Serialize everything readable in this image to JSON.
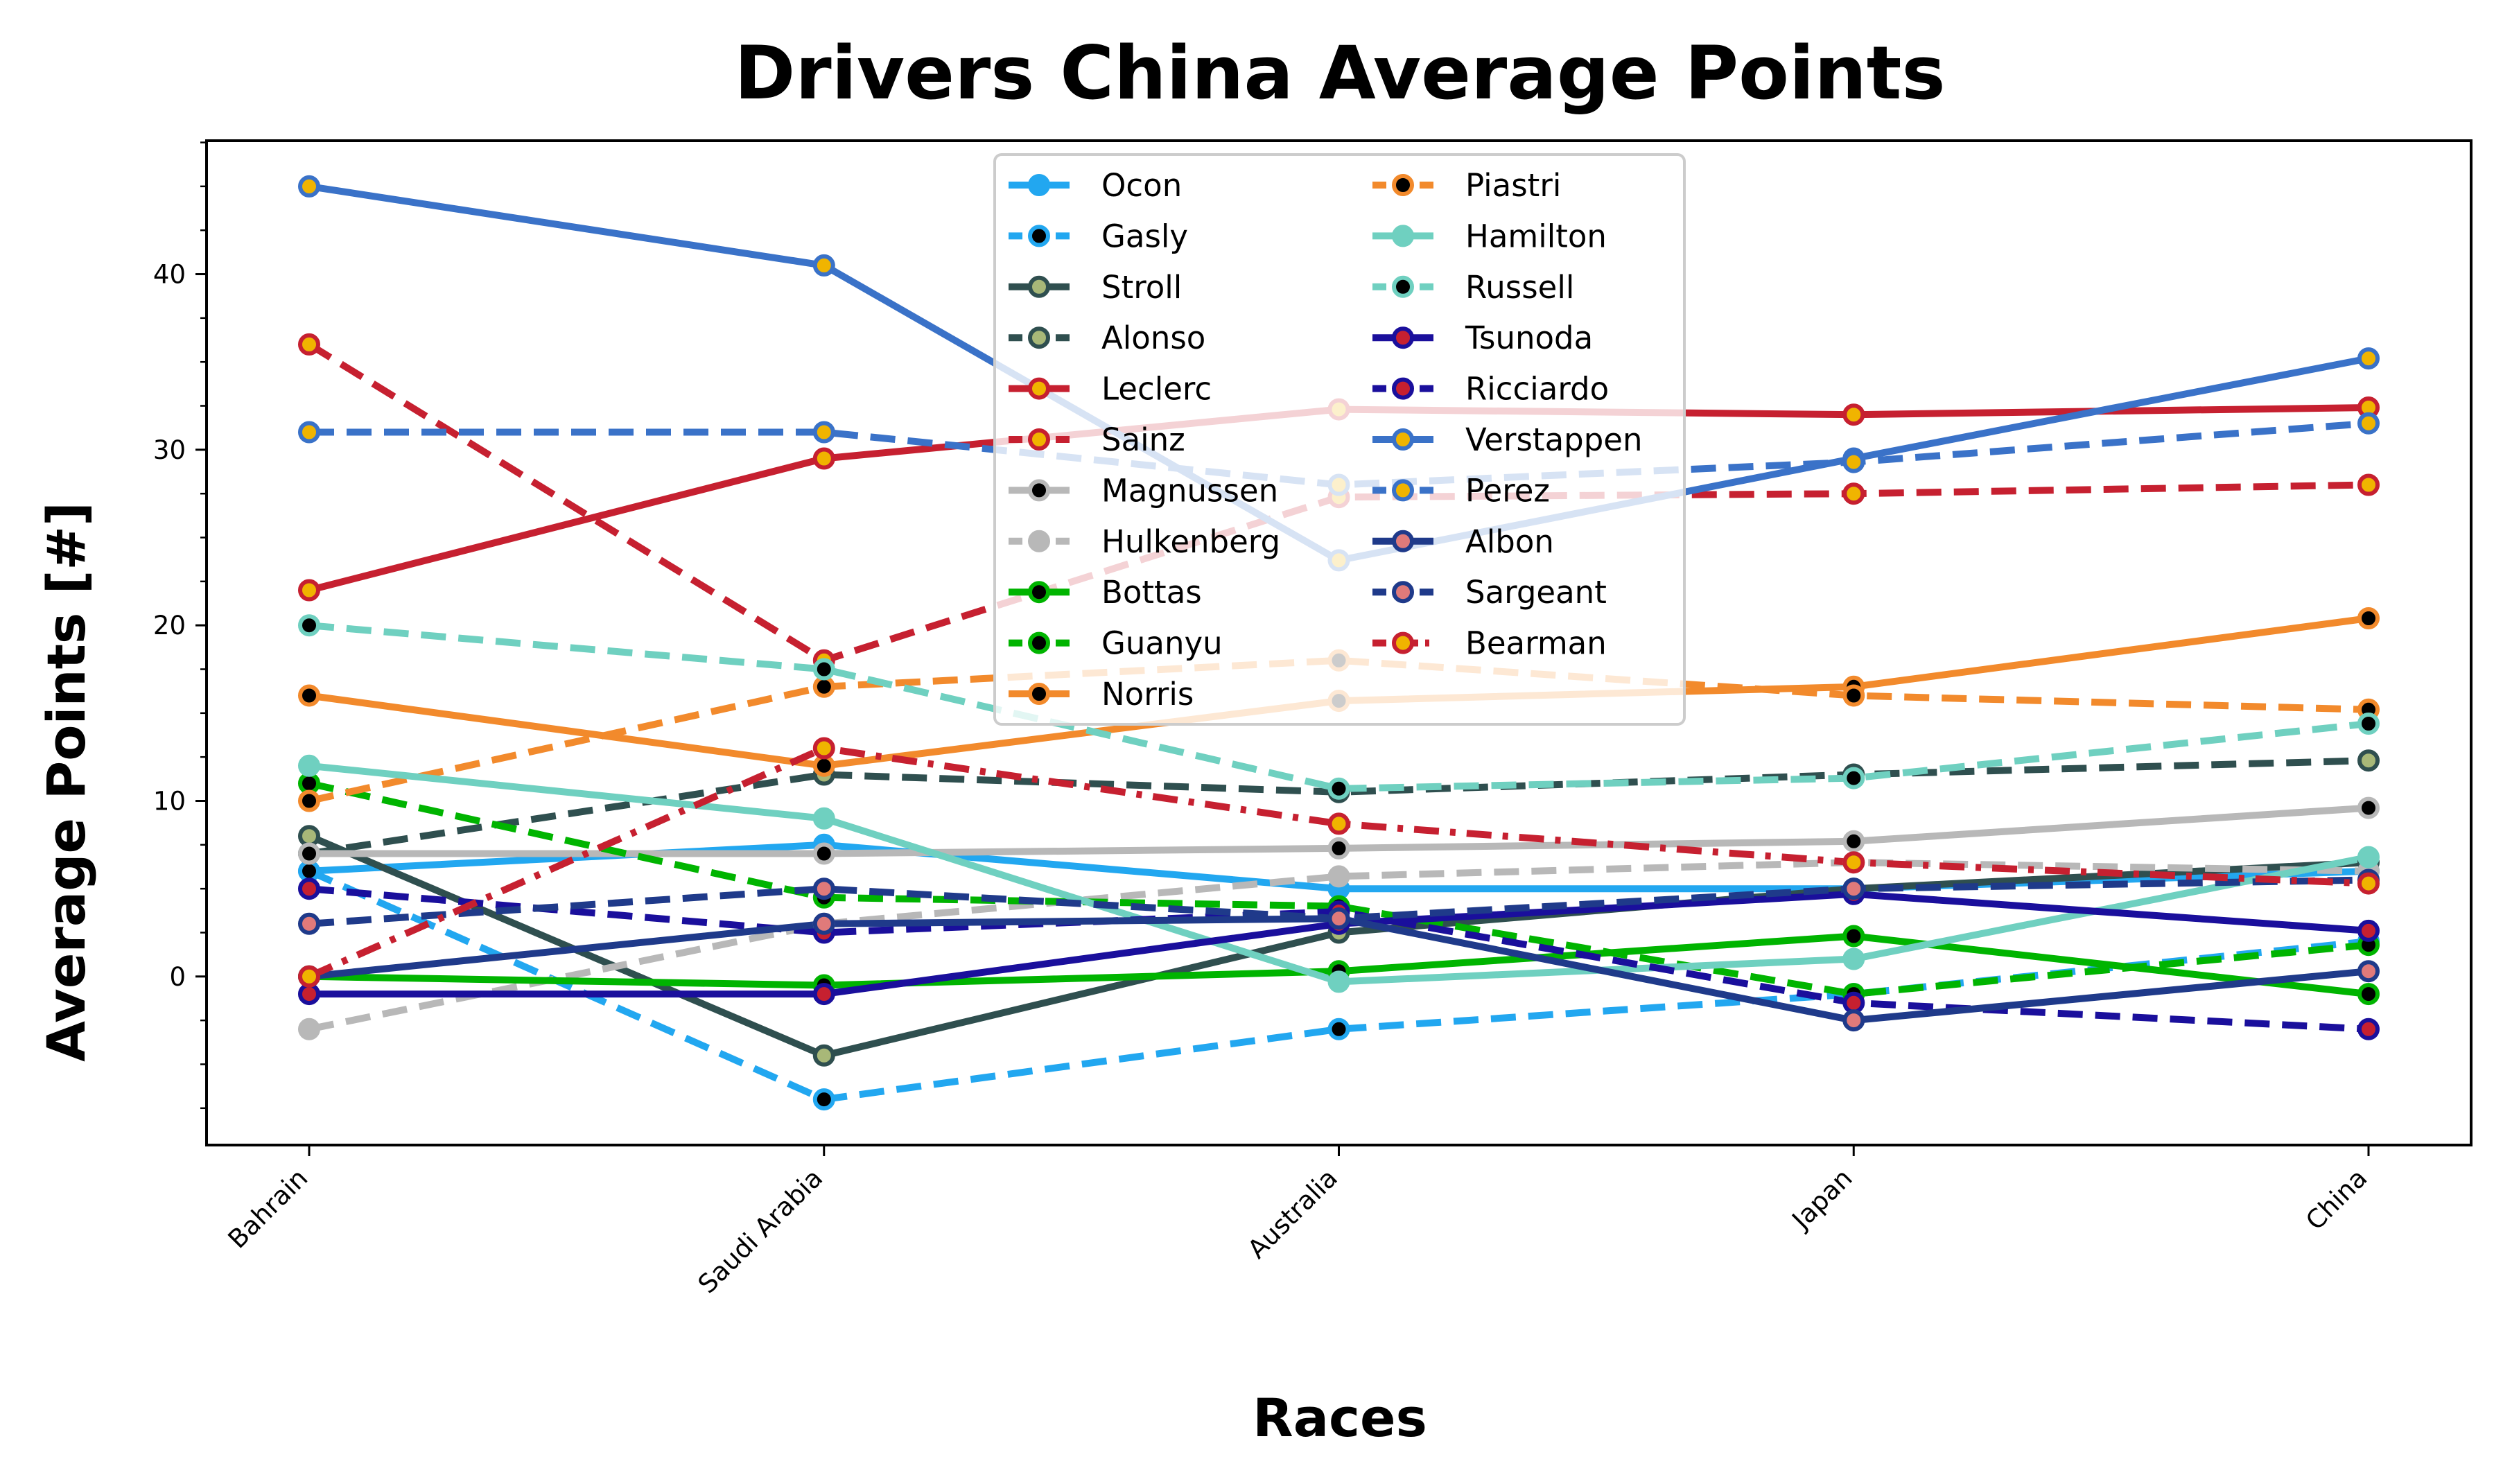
{
  "chart_data": {
    "type": "line",
    "title": "Drivers China Average Points",
    "xlabel": "Races",
    "ylabel": "Average Points [#]",
    "categories": [
      "Bahrain",
      "Saudi Arabia",
      "Australia",
      "Japan",
      "China"
    ],
    "ylim": [
      -9.6,
      47.6
    ],
    "yticks": [
      0,
      10,
      20,
      30,
      40
    ],
    "grid": false,
    "legend_position": "top-center",
    "legend_columns": 2,
    "series": [
      {
        "name": "Ocon",
        "values": [
          6,
          7.5,
          5,
          5,
          6
        ],
        "color": "#22a7f0",
        "marker_face": "#22a7f0",
        "dash": "solid"
      },
      {
        "name": "Gasly",
        "values": [
          6,
          -7,
          -3,
          -1,
          2
        ],
        "color": "#22a7f0",
        "marker_face": "#000000",
        "dash": "dashed"
      },
      {
        "name": "Stroll",
        "values": [
          8,
          -4.5,
          2.5,
          5,
          6.5
        ],
        "color": "#2f4f4f",
        "marker_face": "#a8b878",
        "dash": "solid"
      },
      {
        "name": "Alonso",
        "values": [
          7,
          11.5,
          10.5,
          11.5,
          12.3
        ],
        "color": "#2f4f4f",
        "marker_face": "#a8b878",
        "dash": "dashed"
      },
      {
        "name": "Leclerc",
        "values": [
          22,
          29.5,
          32.3,
          32,
          32.4
        ],
        "color": "#c62030",
        "marker_face": "#f0b400",
        "dash": "solid"
      },
      {
        "name": "Sainz",
        "values": [
          36,
          18,
          27.3,
          27.5,
          28
        ],
        "color": "#c62030",
        "marker_face": "#f0b400",
        "dash": "dashed"
      },
      {
        "name": "Magnussen",
        "values": [
          7,
          7,
          7.3,
          7.7,
          9.6
        ],
        "color": "#b8b8b8",
        "marker_face": "#000000",
        "dash": "solid"
      },
      {
        "name": "Hulkenberg",
        "values": [
          -3,
          3,
          5.7,
          6.5,
          6
        ],
        "color": "#b8b8b8",
        "marker_face": "#b8b8b8",
        "dash": "dashed"
      },
      {
        "name": "Bottas",
        "values": [
          0,
          -0.5,
          0.3,
          2.3,
          -1
        ],
        "color": "#00b400",
        "marker_face": "#000000",
        "dash": "solid"
      },
      {
        "name": "Guanyu",
        "values": [
          11,
          4.5,
          4,
          -1,
          1.8
        ],
        "color": "#00b400",
        "marker_face": "#000000",
        "dash": "dashed"
      },
      {
        "name": "Norris",
        "values": [
          16,
          12,
          15.7,
          16.5,
          20.4
        ],
        "color": "#f28a2c",
        "marker_face": "#000000",
        "dash": "solid"
      },
      {
        "name": "Piastri",
        "values": [
          10,
          16.5,
          18,
          16,
          15.2
        ],
        "color": "#f28a2c",
        "marker_face": "#000000",
        "dash": "dashed"
      },
      {
        "name": "Hamilton",
        "values": [
          12,
          9,
          -0.3,
          1,
          6.8
        ],
        "color": "#6fd0c0",
        "marker_face": "#6fd0c0",
        "dash": "solid"
      },
      {
        "name": "Russell",
        "values": [
          20,
          17.5,
          10.7,
          11.3,
          14.4
        ],
        "color": "#6fd0c0",
        "marker_face": "#000000",
        "dash": "dashed"
      },
      {
        "name": "Tsunoda",
        "values": [
          -1,
          -1,
          3,
          4.7,
          2.6
        ],
        "color": "#1a0f9c",
        "marker_face": "#c62030",
        "dash": "solid"
      },
      {
        "name": "Ricciardo",
        "values": [
          5,
          2.5,
          3.7,
          -1.5,
          -3
        ],
        "color": "#1a0f9c",
        "marker_face": "#c62030",
        "dash": "dashed"
      },
      {
        "name": "Verstappen",
        "values": [
          45,
          40.5,
          23.7,
          29.5,
          35.2
        ],
        "color": "#3a72c8",
        "marker_face": "#f0b400",
        "dash": "solid"
      },
      {
        "name": "Perez",
        "values": [
          31,
          31,
          28,
          29.3,
          31.5
        ],
        "color": "#3a72c8",
        "marker_face": "#f0b400",
        "dash": "dashed"
      },
      {
        "name": "Albon",
        "values": [
          0,
          3,
          3.3,
          -2.5,
          0.3
        ],
        "color": "#1f3a8a",
        "marker_face": "#e07a7a",
        "dash": "solid"
      },
      {
        "name": "Sargeant",
        "values": [
          3,
          5,
          3.3,
          5,
          5.5
        ],
        "color": "#1f3a8a",
        "marker_face": "#e07a7a",
        "dash": "dashed"
      },
      {
        "name": "Bearman",
        "values": [
          0,
          13,
          8.7,
          6.5,
          5.3
        ],
        "color": "#c62030",
        "marker_face": "#f0b400",
        "dash": "dashdot"
      }
    ]
  }
}
